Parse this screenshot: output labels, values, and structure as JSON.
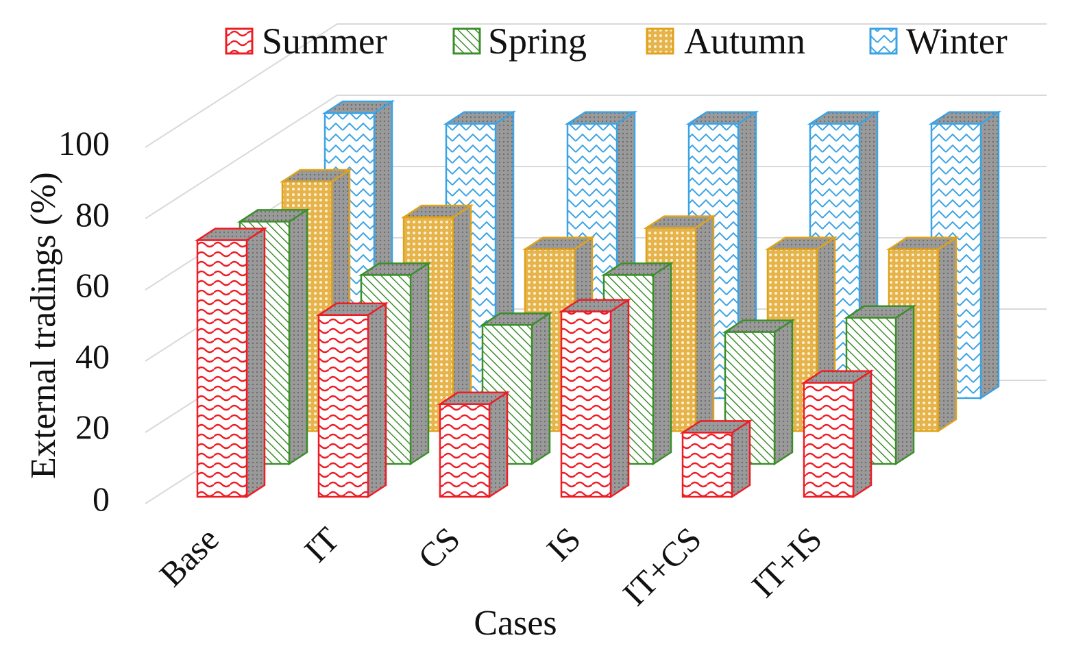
{
  "chart_data": {
    "type": "bar",
    "subtype": "3d-clustered-column",
    "title": "",
    "xlabel": "Cases",
    "ylabel": "External tradings (%)",
    "ylim": [
      0,
      100
    ],
    "yticks": [
      "0",
      "20",
      "40",
      "60",
      "80",
      "100"
    ],
    "categories": [
      "Base",
      "IT",
      "CS",
      "IS",
      "IT+CS",
      "IT+IS"
    ],
    "legend_position": "top",
    "series": [
      {
        "name": "Summer",
        "color": "#ee1c25",
        "pattern": "wave",
        "values": [
          72,
          51,
          26,
          52,
          18,
          32
        ]
      },
      {
        "name": "Spring",
        "color": "#3b8f2a",
        "pattern": "diagonal",
        "values": [
          68,
          53,
          39,
          53,
          37,
          41
        ]
      },
      {
        "name": "Autumn",
        "color": "#e0a21a",
        "pattern": "dots",
        "values": [
          70,
          60,
          51,
          57,
          51,
          51
        ]
      },
      {
        "name": "Winter",
        "color": "#3aa3e6",
        "pattern": "zigzag",
        "values": [
          80,
          77,
          77,
          77,
          77,
          77
        ]
      }
    ]
  }
}
